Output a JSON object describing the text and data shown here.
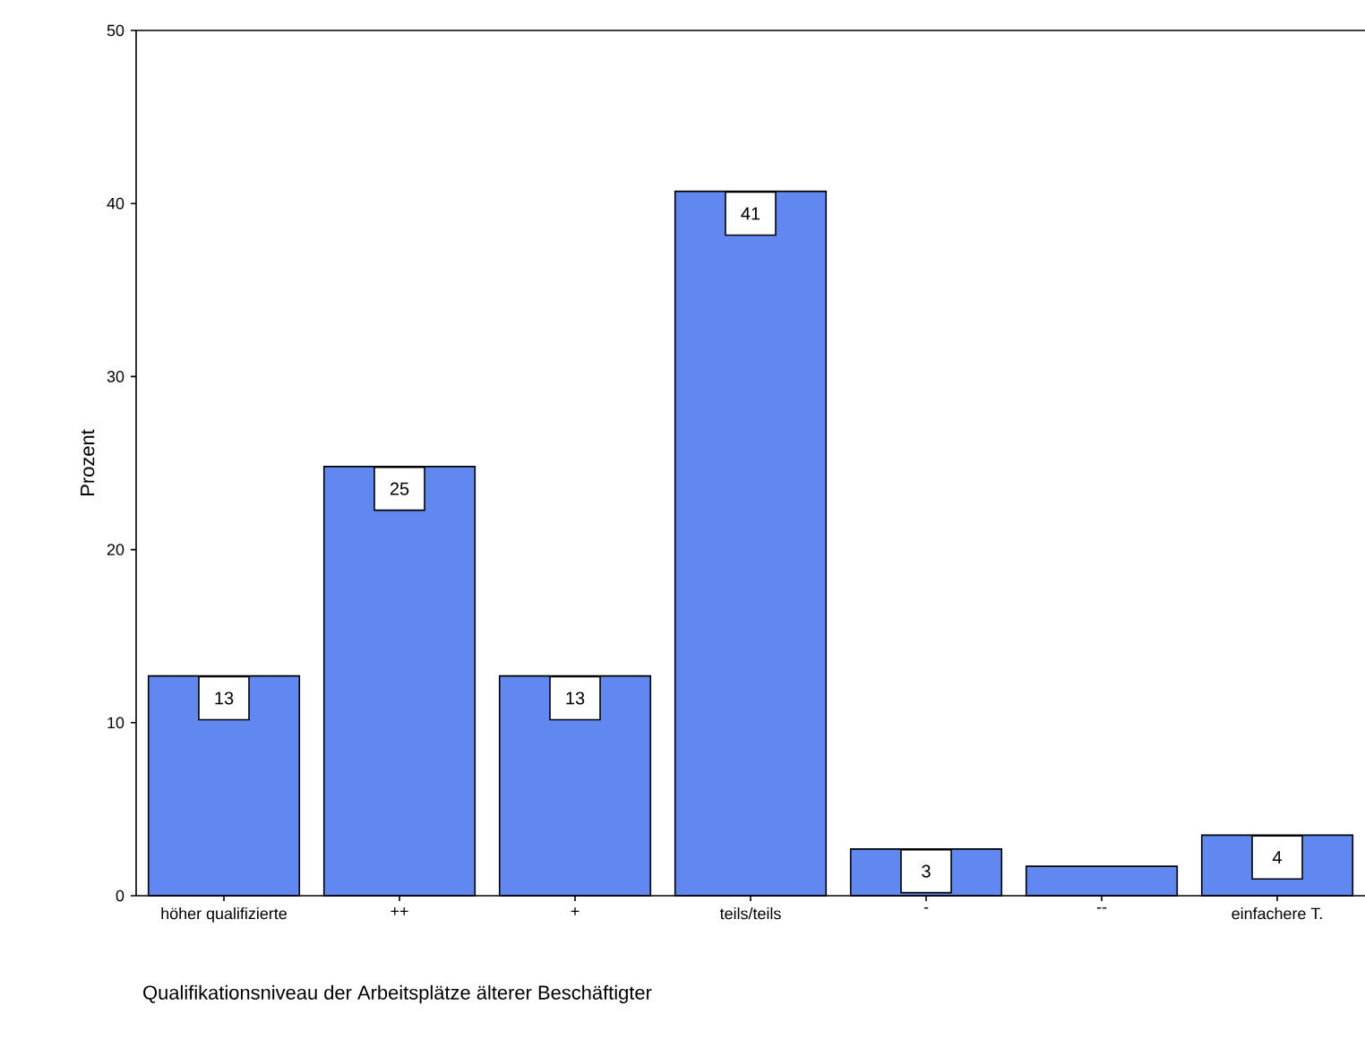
{
  "chart_data": {
    "type": "bar",
    "xlabel": "Qualifikationsniveau der Arbeitsplätze älterer Beschäftigter",
    "ylabel": "Prozent",
    "categories": [
      "höher qualifizierte",
      "++",
      "+",
      "teils/teils",
      "-",
      "--",
      "einfachere T."
    ],
    "values": [
      12.7,
      24.8,
      12.7,
      40.7,
      2.7,
      1.7,
      3.5
    ],
    "value_labels": [
      "13",
      "25",
      "13",
      "41",
      "3",
      null,
      "4"
    ],
    "color": "#6188f0",
    "ylim": [
      0,
      50
    ],
    "yticks": [
      0,
      10,
      20,
      30,
      40,
      50
    ]
  }
}
